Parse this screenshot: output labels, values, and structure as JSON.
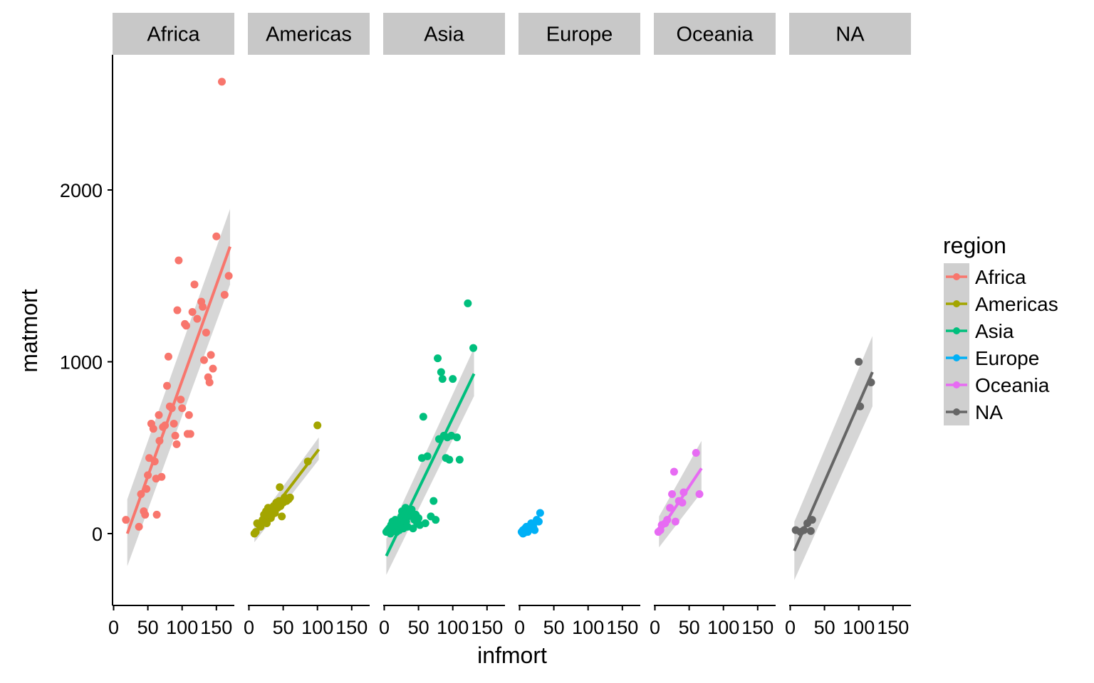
{
  "chart_data": {
    "type": "scatter",
    "facet_by": "region",
    "xlabel": "infmort",
    "ylabel": "matmort",
    "xlim": [
      0,
      180
    ],
    "ylim": [
      -400,
      2650
    ],
    "x_ticks": [
      0,
      50,
      100,
      150
    ],
    "x_tick_labels": [
      "0",
      "50",
      "100",
      "150"
    ],
    "y_ticks": [
      0,
      1000,
      2000
    ],
    "y_tick_labels": [
      "0",
      "1000",
      "2000"
    ],
    "grid": false,
    "smooth": "linear fit with confidence band",
    "legend": {
      "title": "region",
      "position": "right",
      "entries": [
        "Africa",
        "Americas",
        "Asia",
        "Europe",
        "Oceania",
        "NA"
      ]
    },
    "panels": [
      {
        "name": "Africa",
        "color": "#F8766D",
        "x": [
          18,
          37,
          40,
          44,
          46,
          48,
          50,
          52,
          55,
          58,
          60,
          62,
          63,
          66,
          67,
          70,
          72,
          75,
          78,
          80,
          82,
          85,
          88,
          90,
          92,
          93,
          95,
          98,
          100,
          104,
          106,
          108,
          110,
          112,
          115,
          118,
          122,
          128,
          130,
          132,
          135,
          138,
          140,
          142,
          145,
          150,
          158,
          162,
          168
        ],
        "y": [
          80,
          40,
          230,
          130,
          110,
          260,
          340,
          440,
          640,
          610,
          420,
          320,
          110,
          690,
          540,
          330,
          620,
          630,
          860,
          1030,
          740,
          730,
          640,
          570,
          520,
          1300,
          1590,
          780,
          730,
          1220,
          1210,
          580,
          690,
          580,
          1290,
          1450,
          1250,
          1350,
          1320,
          1010,
          1170,
          910,
          880,
          1040,
          960,
          1730,
          2630,
          1390,
          1500
        ],
        "fit": {
          "x0": 20,
          "y0": 0,
          "x1": 170,
          "y1": 1670,
          "lo0": -190,
          "hi0": 200,
          "lo1": 1450,
          "hi1": 1890
        }
      },
      {
        "name": "Americas",
        "color": "#A3A500",
        "x": [
          8,
          10,
          12,
          15,
          17,
          18,
          20,
          22,
          23,
          25,
          26,
          28,
          29,
          30,
          32,
          33,
          34,
          35,
          36,
          38,
          40,
          42,
          44,
          45,
          46,
          48,
          50,
          52,
          55,
          58,
          60,
          86,
          100
        ],
        "y": [
          0,
          10,
          60,
          50,
          40,
          60,
          80,
          110,
          90,
          130,
          60,
          150,
          100,
          120,
          90,
          140,
          110,
          130,
          160,
          120,
          180,
          150,
          190,
          270,
          160,
          100,
          180,
          210,
          190,
          200,
          210,
          420,
          630
        ],
        "fit": {
          "x0": 8,
          "y0": 0,
          "x1": 102,
          "y1": 490,
          "lo0": -50,
          "hi0": 45,
          "lo1": 430,
          "hi1": 560
        }
      },
      {
        "name": "Asia",
        "color": "#00BF7D",
        "x": [
          3,
          5,
          7,
          9,
          10,
          12,
          14,
          15,
          16,
          18,
          20,
          22,
          24,
          25,
          26,
          28,
          29,
          30,
          31,
          32,
          33,
          34,
          35,
          36,
          37,
          38,
          40,
          42,
          44,
          46,
          48,
          50,
          52,
          55,
          57,
          60,
          63,
          68,
          72,
          75,
          78,
          80,
          83,
          85,
          87,
          90,
          92,
          95,
          98,
          100,
          106,
          110,
          122,
          130
        ],
        "y": [
          10,
          20,
          30,
          0,
          50,
          70,
          20,
          40,
          80,
          10,
          40,
          20,
          60,
          100,
          130,
          30,
          80,
          110,
          150,
          70,
          130,
          40,
          100,
          110,
          120,
          130,
          140,
          30,
          80,
          110,
          60,
          90,
          50,
          440,
          680,
          60,
          450,
          100,
          190,
          80,
          1020,
          550,
          940,
          900,
          570,
          440,
          560,
          430,
          570,
          900,
          560,
          430,
          1340,
          1080
        ],
        "fit": {
          "x0": 3,
          "y0": -130,
          "x1": 131,
          "y1": 930,
          "lo0": -240,
          "hi0": -30,
          "lo1": 800,
          "hi1": 1080
        }
      },
      {
        "name": "Europe",
        "color": "#00B0F6",
        "x": [
          3,
          4,
          5,
          5,
          6,
          6,
          7,
          7,
          8,
          8,
          9,
          10,
          10,
          11,
          12,
          12,
          13,
          14,
          15,
          16,
          17,
          20,
          22,
          25,
          28,
          30
        ],
        "y": [
          10,
          5,
          20,
          0,
          15,
          10,
          25,
          5,
          20,
          30,
          10,
          15,
          40,
          20,
          10,
          30,
          25,
          40,
          30,
          50,
          60,
          40,
          20,
          80,
          70,
          120
        ],
        "fit": null
      },
      {
        "name": "Oceania",
        "color": "#E76BF3",
        "x": [
          5,
          8,
          10,
          15,
          18,
          22,
          25,
          28,
          30,
          35,
          40,
          42,
          60,
          65
        ],
        "y": [
          10,
          20,
          50,
          60,
          80,
          150,
          230,
          360,
          70,
          190,
          180,
          240,
          470,
          230
        ],
        "fit": {
          "x0": 6,
          "y0": 10,
          "x1": 68,
          "y1": 380,
          "lo0": -80,
          "hi0": 100,
          "lo1": 240,
          "hi1": 540
        }
      },
      {
        "name": "NA",
        "color": "#666666",
        "x": [
          8,
          15,
          20,
          25,
          30,
          32,
          100,
          102,
          118
        ],
        "y": [
          20,
          10,
          20,
          60,
          15,
          80,
          1000,
          740,
          880
        ],
        "fit": {
          "x0": 6,
          "y0": -100,
          "x1": 120,
          "y1": 940,
          "lo0": -270,
          "hi0": 70,
          "lo1": 740,
          "hi1": 1150
        }
      }
    ]
  }
}
